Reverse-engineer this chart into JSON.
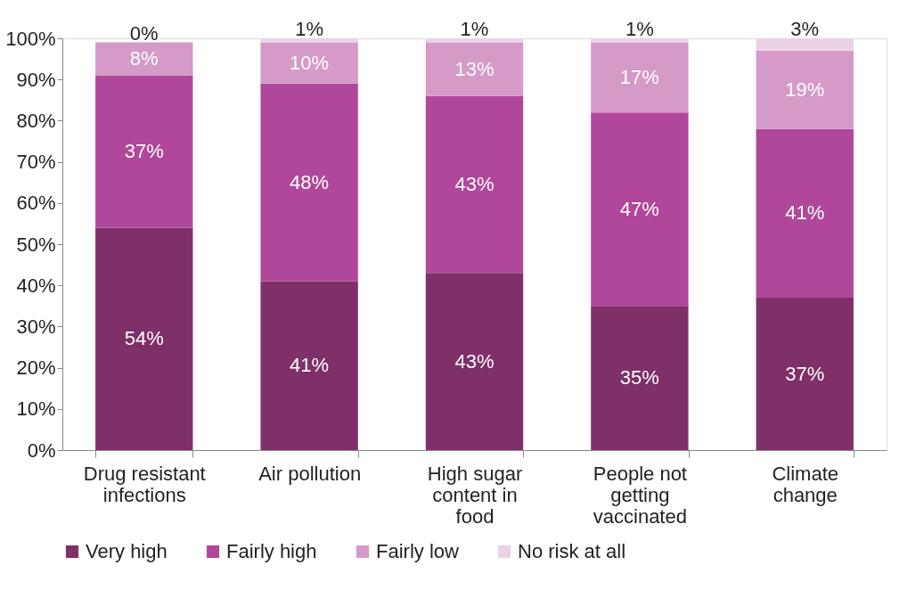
{
  "chart_data": {
    "type": "bar",
    "stacked": true,
    "grid": false,
    "legend": "bottom",
    "categories": [
      "Drug resistant\ninfections",
      "Air pollution",
      "High sugar\ncontent in\nfood",
      "People not\ngetting\nvaccinated",
      "Climate\nchange"
    ],
    "ylim": [
      0,
      100
    ],
    "yticks": [
      {
        "value": 0,
        "label": "0%"
      },
      {
        "value": 10,
        "label": "10%"
      },
      {
        "value": 20,
        "label": "20%"
      },
      {
        "value": 30,
        "label": "30%"
      },
      {
        "value": 40,
        "label": "40%"
      },
      {
        "value": 50,
        "label": "50%"
      },
      {
        "value": 60,
        "label": "60%"
      },
      {
        "value": 70,
        "label": "70%"
      },
      {
        "value": 80,
        "label": "80%"
      },
      {
        "value": 90,
        "label": "90%"
      },
      {
        "value": 100,
        "label": "100%"
      }
    ],
    "series": [
      {
        "name": "Very high",
        "color": "#7f3068",
        "values": [
          54,
          41,
          43,
          35,
          37
        ],
        "value_labels": [
          "54%",
          "41%",
          "43%",
          "35%",
          "37%"
        ]
      },
      {
        "name": "Fairly high",
        "color": "#b0479a",
        "values": [
          37,
          48,
          43,
          47,
          41
        ],
        "value_labels": [
          "37%",
          "48%",
          "43%",
          "47%",
          "41%"
        ]
      },
      {
        "name": "Fairly low",
        "color": "#d59ac8",
        "values": [
          8,
          10,
          13,
          17,
          19
        ],
        "value_labels": [
          "8%",
          "10%",
          "13%",
          "17%",
          "19%"
        ]
      },
      {
        "name": "No risk at all",
        "color": "#ecd2e6",
        "values": [
          0,
          1,
          1,
          1,
          3
        ],
        "value_labels": [
          "0%",
          "1%",
          "1%",
          "1%",
          "3%"
        ]
      }
    ]
  }
}
